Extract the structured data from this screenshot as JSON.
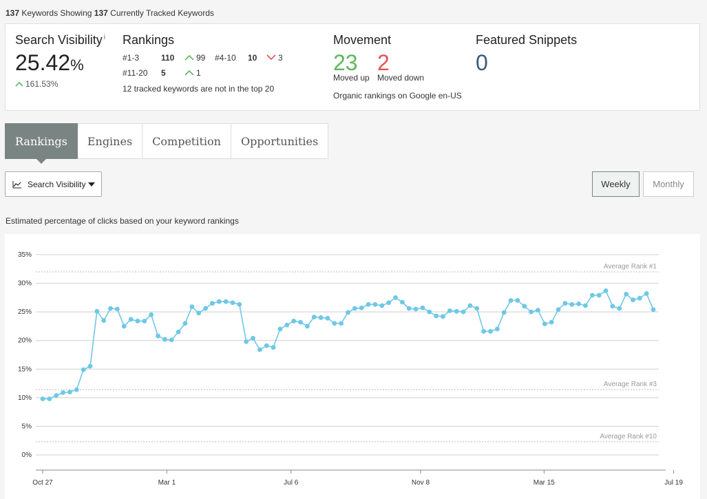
{
  "header": {
    "keyword_count": "137",
    "keywords_showing_text": "Keywords Showing",
    "tracked_count": "137",
    "tracked_text": "Currently Tracked Keywords"
  },
  "summary": {
    "search_visibility": {
      "title": "Search Visibility",
      "info_mark": "i",
      "value": "25.42",
      "unit": "%",
      "change": "161.53%"
    },
    "rankings": {
      "title": "Rankings",
      "rows": [
        {
          "range": "#1-3",
          "count": "110",
          "change": "99",
          "direction": "up"
        },
        {
          "range": "#4-10",
          "count": "10",
          "change": "3",
          "direction": "down"
        },
        {
          "range": "#11-20",
          "count": "5",
          "change": "1",
          "direction": "up"
        }
      ],
      "note": "12 tracked keywords are not in the top 20"
    },
    "movement": {
      "title": "Movement",
      "up_value": "23",
      "up_label": "Moved up",
      "down_value": "2",
      "down_label": "Moved down",
      "note": "Organic rankings on Google en-US"
    },
    "featured_snippets": {
      "title": "Featured Snippets",
      "value": "0"
    }
  },
  "tabs": [
    "Rankings",
    "Engines",
    "Competition",
    "Opportunities"
  ],
  "controls": {
    "metric_dropdown": "Search Visibility",
    "weekly": "Weekly",
    "monthly": "Monthly"
  },
  "chart_description": "Estimated percentage of clicks based on your keyword rankings",
  "colors": {
    "line": "#6ec8e6",
    "up": "#5cb85c",
    "down": "#e55353",
    "tab_active": "#7a8583"
  },
  "chart_data": {
    "type": "line",
    "ylim": [
      0,
      35
    ],
    "y_ticks": [
      "0%",
      "5%",
      "10%",
      "15%",
      "20%",
      "25%",
      "30%",
      "35%"
    ],
    "x_tick_labels": [
      "Oct 27",
      "Mar 1",
      "Jul 6",
      "Nov 8",
      "Mar 15",
      "Jul 19"
    ],
    "x_tick_index": [
      0,
      18.3,
      36.6,
      55.7,
      73.9,
      93
    ],
    "values": [
      9.8,
      9.8,
      10.4,
      10.9,
      11.0,
      11.4,
      14.9,
      15.5,
      25.1,
      23.5,
      25.6,
      25.5,
      22.5,
      23.7,
      23.4,
      23.4,
      24.5,
      20.8,
      20.2,
      20.1,
      21.5,
      23.0,
      25.9,
      24.8,
      25.6,
      26.5,
      26.8,
      26.8,
      26.6,
      26.3,
      19.8,
      20.4,
      18.4,
      19.1,
      18.8,
      22.0,
      22.7,
      23.4,
      23.2,
      22.5,
      24.1,
      24.0,
      23.9,
      23.0,
      23.0,
      24.9,
      25.6,
      25.7,
      26.3,
      26.3,
      26.1,
      26.6,
      27.5,
      26.7,
      25.6,
      25.5,
      25.7,
      25.0,
      24.3,
      24.2,
      25.2,
      25.1,
      25.0,
      26.1,
      25.6,
      21.6,
      21.6,
      22.0,
      24.9,
      27.0,
      27.0,
      26.0,
      25.0,
      25.3,
      22.9,
      23.2,
      25.4,
      26.5,
      26.3,
      26.4,
      26.1,
      27.9,
      27.9,
      28.7,
      26.0,
      25.6,
      28.1,
      27.1,
      27.4,
      28.2,
      25.4
    ],
    "reference_lines": [
      {
        "label": "Average Rank #1",
        "value": 32
      },
      {
        "label": "Average Rank #3",
        "value": 11.4
      },
      {
        "label": "Average Rank #10",
        "value": 2.3
      }
    ],
    "grid": true
  }
}
